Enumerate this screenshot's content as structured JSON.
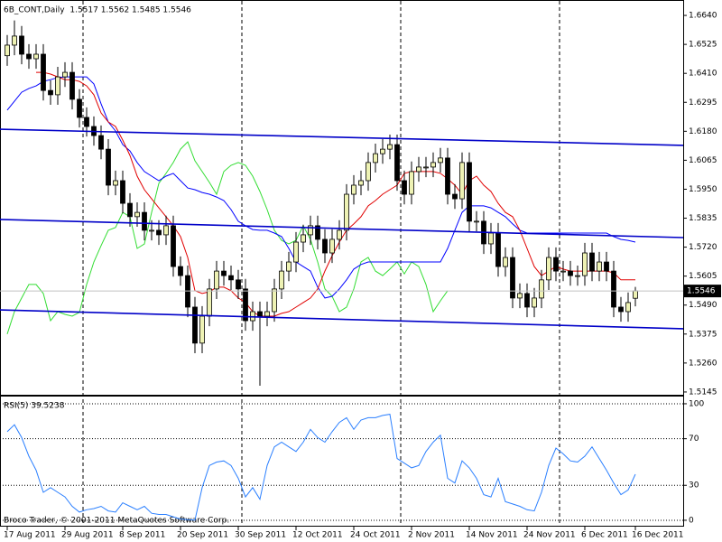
{
  "chart_data": [
    {
      "type": "candlestick",
      "title": "6B_CONT,Daily  1.5517 1.5562 1.5485 1.5546",
      "categories": [
        "17 Aug 2011",
        null,
        null,
        null,
        null,
        null,
        null,
        null,
        "29 Aug 2011",
        null,
        null,
        null,
        null,
        null,
        null,
        null,
        "8 Sep 2011",
        null,
        null,
        null,
        null,
        null,
        null,
        null,
        "20 Sep 2011",
        null,
        null,
        null,
        null,
        null,
        null,
        null,
        "30 Sep 2011",
        null,
        null,
        null,
        null,
        null,
        null,
        null,
        "12 Oct 2011",
        null,
        null,
        null,
        null,
        null,
        null,
        null,
        "24 Oct 2011",
        null,
        null,
        null,
        null,
        null,
        null,
        null,
        "2 Nov 2011",
        null,
        null,
        null,
        null,
        null,
        null,
        null,
        "14 Nov 2011",
        null,
        null,
        null,
        null,
        null,
        null,
        null,
        "24 Nov 2011",
        null,
        null,
        null,
        null,
        null,
        null,
        null,
        "6 Dec 2011",
        null,
        null,
        null,
        null,
        null,
        null,
        "16 Dec 2011"
      ],
      "open": [
        1.648,
        1.6522,
        1.6558,
        1.6486,
        1.6468,
        1.6486,
        1.6342,
        1.6325,
        1.6396,
        1.6414,
        1.6307,
        1.6235,
        1.6199,
        1.6163,
        1.6109,
        1.5966,
        1.5984,
        1.5894,
        1.5841,
        1.5858,
        1.5787,
        1.5787,
        1.5769,
        1.5805,
        1.5643,
        1.5607,
        1.5482,
        1.5339,
        1.5446,
        1.5554,
        1.5625,
        1.5607,
        1.559,
        1.5554,
        1.5428,
        1.5464,
        1.5446,
        1.5464,
        1.5554,
        1.5625,
        1.5661,
        1.574,
        1.5769,
        1.5805,
        1.5751,
        1.5697,
        1.5751,
        1.5787,
        1.593,
        1.5966,
        1.5984,
        1.6056,
        1.6091,
        1.6109,
        1.6127,
        1.5984,
        1.593,
        1.602,
        1.6038,
        1.6038,
        1.6056,
        1.6074,
        1.593,
        1.5912,
        1.6056,
        1.5823,
        1.5823,
        1.5733,
        1.5776,
        1.5643,
        1.5679,
        1.5518,
        1.5536,
        1.5482,
        1.5518,
        1.559,
        1.5679,
        1.5625,
        1.5625,
        1.5607,
        1.5607,
        1.5697,
        1.5625,
        1.5661,
        1.5625,
        1.5482,
        1.5464,
        1.5517
      ],
      "high": [
        1.6562,
        1.662,
        1.6598,
        1.6526,
        1.6526,
        1.6526,
        1.6382,
        1.6436,
        1.6454,
        1.6454,
        1.6347,
        1.6275,
        1.6239,
        1.6203,
        1.6149,
        1.6024,
        1.6024,
        1.5934,
        1.5898,
        1.5898,
        1.5827,
        1.5827,
        1.5845,
        1.5845,
        1.5683,
        1.5647,
        1.5522,
        1.5486,
        1.5594,
        1.5665,
        1.5665,
        1.5647,
        1.563,
        1.5594,
        1.5504,
        1.5504,
        1.5504,
        1.5594,
        1.5665,
        1.5701,
        1.578,
        1.5809,
        1.5845,
        1.5845,
        1.5791,
        1.5791,
        1.5827,
        1.597,
        1.6006,
        1.6024,
        1.6096,
        1.6131,
        1.6149,
        1.6167,
        1.6167,
        1.6024,
        1.606,
        1.6078,
        1.6078,
        1.6096,
        1.6114,
        1.6114,
        1.597,
        1.6096,
        1.6096,
        1.5863,
        1.5863,
        1.5816,
        1.5816,
        1.5719,
        1.5719,
        1.5576,
        1.5576,
        1.5558,
        1.563,
        1.5719,
        1.5719,
        1.5665,
        1.5665,
        1.5647,
        1.5737,
        1.5737,
        1.5701,
        1.5701,
        1.5665,
        1.5522,
        1.554,
        1.5562
      ],
      "low": [
        1.644,
        1.6482,
        1.6446,
        1.6428,
        1.6428,
        1.6302,
        1.6285,
        1.6285,
        1.6356,
        1.6267,
        1.6195,
        1.6159,
        1.6123,
        1.6069,
        1.5926,
        1.5926,
        1.5854,
        1.5801,
        1.5801,
        1.5747,
        1.5747,
        1.5729,
        1.5729,
        1.5603,
        1.5567,
        1.5442,
        1.5299,
        1.5299,
        1.5406,
        1.5514,
        1.5567,
        1.555,
        1.5514,
        1.5388,
        1.5388,
        1.517,
        1.5406,
        1.5424,
        1.5514,
        1.5585,
        1.5621,
        1.57,
        1.5729,
        1.5711,
        1.5657,
        1.5657,
        1.5711,
        1.5747,
        1.589,
        1.5926,
        1.5944,
        1.6016,
        1.6051,
        1.6069,
        1.5944,
        1.589,
        1.589,
        1.598,
        1.5998,
        1.5998,
        1.6016,
        1.589,
        1.5872,
        1.5872,
        1.5783,
        1.5783,
        1.5693,
        1.5693,
        1.5603,
        1.5603,
        1.5478,
        1.5478,
        1.5442,
        1.5442,
        1.5478,
        1.555,
        1.5585,
        1.5585,
        1.5567,
        1.5567,
        1.5567,
        1.5585,
        1.5585,
        1.5585,
        1.5442,
        1.5424,
        1.5424,
        1.5485
      ],
      "close": [
        1.6522,
        1.6558,
        1.6486,
        1.6468,
        1.6486,
        1.6342,
        1.6325,
        1.6396,
        1.6414,
        1.6307,
        1.6235,
        1.6199,
        1.6163,
        1.6109,
        1.5966,
        1.5984,
        1.5894,
        1.5841,
        1.5858,
        1.5787,
        1.5787,
        1.5769,
        1.5805,
        1.5643,
        1.5607,
        1.5482,
        1.5339,
        1.5446,
        1.5554,
        1.5625,
        1.5607,
        1.559,
        1.5554,
        1.5428,
        1.5464,
        1.5446,
        1.5464,
        1.5554,
        1.5625,
        1.5661,
        1.574,
        1.5769,
        1.5805,
        1.5751,
        1.5697,
        1.5751,
        1.5787,
        1.593,
        1.5966,
        1.5984,
        1.6056,
        1.6091,
        1.6109,
        1.6127,
        1.5984,
        1.593,
        1.602,
        1.6038,
        1.6038,
        1.6056,
        1.6074,
        1.593,
        1.5912,
        1.6056,
        1.5823,
        1.5823,
        1.5733,
        1.5776,
        1.5643,
        1.5679,
        1.5518,
        1.5536,
        1.5482,
        1.5518,
        1.559,
        1.5679,
        1.5625,
        1.5625,
        1.5607,
        1.5607,
        1.5697,
        1.5625,
        1.5661,
        1.5625,
        1.5482,
        1.5464,
        1.55,
        1.5546
      ],
      "up_color": "#eef2b4",
      "down_color": "#000000",
      "lines": [
        {
          "color": "#33dd33",
          "values": [
            1.5375,
            1.5464,
            1.5518,
            1.5572,
            1.5572,
            1.5536,
            1.5428,
            1.5464,
            1.5453,
            1.5446,
            1.5461,
            1.5572,
            1.5661,
            1.5726,
            1.5787,
            1.5798,
            1.5858,
            1.5841,
            1.5715,
            1.5733,
            1.5858,
            1.5973,
            1.6013,
            1.6056,
            1.6109,
            1.6138,
            1.6063,
            1.602,
            1.5977,
            1.593,
            1.602,
            1.6045,
            1.6056,
            1.6045,
            1.6002,
            1.5941,
            1.5869,
            1.5787,
            1.5747,
            1.5733,
            1.5747,
            1.5805,
            1.5751,
            1.5661,
            1.5554,
            1.5525,
            1.5464,
            1.5482,
            1.5554,
            1.5661,
            1.5679,
            1.5625,
            1.5607,
            1.5633,
            1.5661,
            1.5614,
            1.5661,
            1.5643,
            1.5572,
            1.5464,
            1.5507,
            1.5547,
            null,
            null,
            null,
            null,
            null,
            null,
            null,
            null,
            null,
            null,
            null,
            null,
            null,
            null,
            null,
            null,
            null,
            null,
            null,
            null,
            null,
            null,
            null,
            null,
            null,
            null
          ]
        },
        {
          "color": "#0000ff",
          "values": [
            1.6264,
            1.6299,
            1.6335,
            1.635,
            1.636,
            1.6378,
            1.6385,
            1.6393,
            1.6396,
            1.6396,
            1.6396,
            1.6396,
            1.6368,
            1.6289,
            1.6217,
            1.6181,
            1.6127,
            1.6102,
            1.6056,
            1.602,
            1.6002,
            1.5984,
            1.6002,
            1.6013,
            1.5984,
            1.5955,
            1.5948,
            1.5937,
            1.593,
            1.5919,
            1.5905,
            1.5869,
            1.5823,
            1.5805,
            1.579,
            1.5787,
            1.5787,
            1.5776,
            1.5762,
            1.5715,
            1.5661,
            1.5643,
            1.5625,
            1.5561,
            1.5518,
            1.5525,
            1.5554,
            1.559,
            1.5633,
            1.5651,
            1.5661,
            1.5661,
            1.5661,
            1.5661,
            1.5661,
            1.5661,
            1.5661,
            1.5661,
            1.5661,
            1.5661,
            1.5661,
            1.5715,
            1.5787,
            1.5858,
            1.5884,
            1.5884,
            1.5884,
            1.5876,
            1.5858,
            1.5841,
            1.5812,
            1.5787,
            1.5776,
            1.5776,
            1.5776,
            1.5776,
            1.5776,
            1.5776,
            1.5776,
            1.5776,
            1.5776,
            1.5776,
            1.5776,
            1.5776,
            1.5762,
            1.5751,
            1.5747,
            1.574
          ]
        },
        {
          "color": "#e00000",
          "values": [
            null,
            null,
            null,
            null,
            1.6414,
            1.6414,
            1.6407,
            1.6396,
            1.6385,
            1.6385,
            1.6378,
            1.636,
            1.6325,
            1.6253,
            1.6217,
            1.6199,
            1.6145,
            1.6084,
            1.6002,
            1.5948,
            1.5912,
            1.5876,
            1.5841,
            1.5805,
            1.5762,
            1.5679,
            1.5547,
            1.5536,
            1.5543,
            1.5561,
            1.5561,
            1.5547,
            1.5518,
            1.55,
            1.5464,
            1.5446,
            1.5446,
            1.5446,
            1.5457,
            1.5464,
            1.5482,
            1.55,
            1.5518,
            1.5554,
            1.5625,
            1.5686,
            1.574,
            1.5787,
            1.5812,
            1.5841,
            1.5884,
            1.5905,
            1.593,
            1.5948,
            1.5966,
            1.6013,
            1.602,
            1.602,
            1.602,
            1.602,
            1.6013,
            1.5991,
            1.5966,
            1.593,
            1.5984,
            1.6002,
            1.5966,
            1.5941,
            1.5894,
            1.5858,
            1.5841,
            1.5787,
            1.5715,
            1.5643,
            1.5607,
            1.5625,
            1.5643,
            1.5633,
            1.5625,
            1.5625,
            1.5625,
            1.5625,
            1.5625,
            1.5625,
            1.5618,
            1.559,
            1.559,
            1.559
          ]
        }
      ],
      "trendlines": [
        {
          "color": "#0000c8",
          "values": [
            1.6188,
            1.6124
          ]
        },
        {
          "color": "#0000c8",
          "values": [
            1.583,
            1.5758
          ]
        },
        {
          "color": "#0000c8",
          "values": [
            1.5471,
            1.5396
          ]
        }
      ],
      "last_price": 1.5546,
      "ylim": [
        1.5134,
        1.6694
      ],
      "yticks": [
        {
          "value": 1.664,
          "label": "1.6640"
        },
        1.6525,
        {
          "value": 1.641,
          "label": "1.6410"
        },
        1.6295,
        {
          "value": 1.618,
          "label": "1.6180"
        },
        1.6065,
        {
          "value": 1.595,
          "label": "1.5950"
        },
        1.5835,
        {
          "value": 1.572,
          "label": "1.5720"
        },
        1.5605,
        {
          "value": 1.549,
          "label": "1.5490"
        },
        1.5375,
        {
          "value": 1.526,
          "label": "1.5260"
        },
        1.5145
      ],
      "grid": false
    },
    {
      "type": "line",
      "title": "RSI(5) 39.5238",
      "color": "#2a7fff",
      "values": [
        76,
        82,
        71,
        55,
        43,
        24,
        28,
        24,
        20,
        12,
        7,
        9,
        10,
        12,
        8,
        7,
        15,
        12,
        9,
        12,
        6,
        5,
        5,
        3,
        1,
        0.5,
        0.2,
        28,
        47,
        50,
        51,
        47,
        36,
        20,
        28,
        18,
        47,
        63,
        67,
        63,
        59,
        67,
        78,
        71,
        67,
        76,
        84,
        88,
        78,
        86,
        88,
        88,
        90,
        91,
        53,
        49,
        45,
        47,
        59,
        67,
        73,
        36,
        32,
        51,
        45,
        36,
        22,
        20,
        36,
        16,
        14,
        12,
        9,
        8,
        24,
        47,
        62,
        57,
        51,
        50,
        55,
        63,
        53,
        43,
        32,
        22,
        26,
        39.5238
      ],
      "ylim": [
        -4.7,
        105.4
      ],
      "yticks": [
        0,
        30,
        70,
        100
      ],
      "grid": true
    }
  ],
  "footer": "Broco Trader, © 2001-2011 MetaQuotes Software Corp."
}
